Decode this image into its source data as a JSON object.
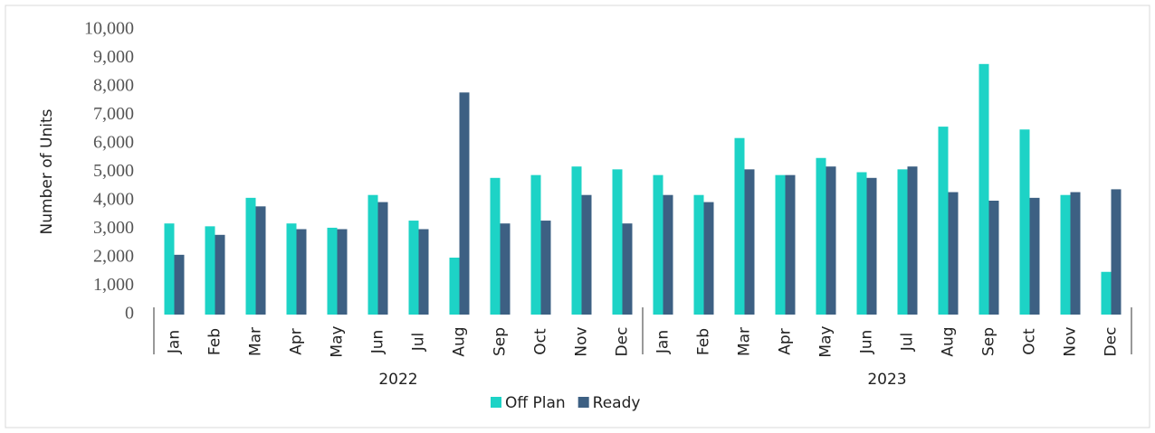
{
  "chart_data": {
    "type": "bar",
    "y_label": "Number of Units",
    "categories": [
      "Jan",
      "Feb",
      "Mar",
      "Apr",
      "May",
      "Jun",
      "Jul",
      "Aug",
      "Sep",
      "Oct",
      "Nov",
      "Dec",
      "Jan",
      "Feb",
      "Mar",
      "Apr",
      "May",
      "Jun",
      "Jul",
      "Aug",
      "Sep",
      "Oct",
      "Nov",
      "Dec"
    ],
    "category_groups": [
      {
        "label": "2022",
        "size": 12
      },
      {
        "label": "2023",
        "size": 12
      }
    ],
    "series": [
      {
        "name": "Off Plan",
        "color": "#1dd3c6",
        "values": [
          3200,
          3100,
          4100,
          3200,
          3050,
          4200,
          3300,
          2000,
          4800,
          4900,
          5200,
          5100,
          4900,
          4200,
          6200,
          4900,
          5500,
          5000,
          5100,
          6600,
          8800,
          6500,
          4200,
          1500
        ]
      },
      {
        "name": "Ready",
        "color": "#3d6083",
        "values": [
          2100,
          2800,
          3800,
          3000,
          3000,
          3950,
          3000,
          7800,
          3200,
          3300,
          4200,
          3200,
          4200,
          3950,
          5100,
          4900,
          5200,
          4800,
          5200,
          4300,
          4000,
          4100,
          4300,
          4400
        ]
      }
    ],
    "ylim": [
      0,
      10000
    ],
    "yticks": [
      0,
      {
        "value": 1000,
        "label": "1,000"
      },
      {
        "value": 2000,
        "label": "2,000"
      },
      {
        "value": 3000,
        "label": "3,000"
      },
      {
        "value": 4000,
        "label": "4,000"
      },
      {
        "value": 5000,
        "label": "5,000"
      },
      {
        "value": 6000,
        "label": "6,000"
      },
      {
        "value": 7000,
        "label": "7,000"
      },
      {
        "value": 8000,
        "label": "8,000"
      },
      {
        "value": 9000,
        "label": "9,000"
      },
      {
        "value": 10000,
        "label": "10,000"
      }
    ],
    "legend": "bottom"
  }
}
